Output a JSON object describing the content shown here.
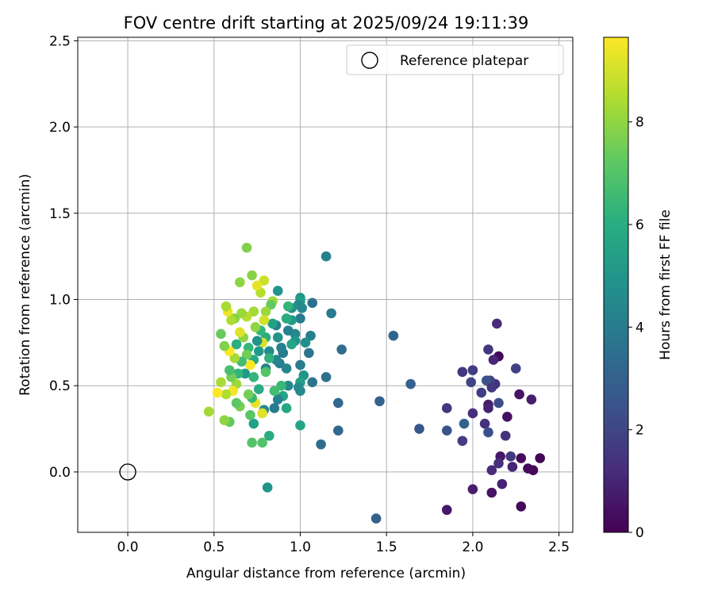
{
  "chart_data": {
    "type": "scatter",
    "title": "FOV centre drift starting at 2025/09/24 19:11:39",
    "xlabel": "Angular distance from reference (arcmin)",
    "ylabel": "Rotation from reference (arcmin)",
    "xlim": [
      -0.29,
      2.58
    ],
    "ylim": [
      -0.35,
      2.52
    ],
    "xticks": [
      0.0,
      0.5,
      1.0,
      1.5,
      2.0,
      2.5
    ],
    "yticks": [
      0.0,
      0.5,
      1.0,
      1.5,
      2.0,
      2.5
    ],
    "grid": true,
    "legend": {
      "placement": "top-right",
      "entries": [
        {
          "label": "Reference platepar",
          "marker": "open-circle"
        }
      ]
    },
    "reference_point": {
      "x": 0.0,
      "y": 0.0
    },
    "colorbar": {
      "label": "Hours from first FF file",
      "min": 0,
      "max": 9.65,
      "ticks": [
        0,
        2,
        4,
        6,
        8
      ],
      "colormap": "viridis"
    },
    "points": [
      {
        "x": 2.39,
        "y": 0.08,
        "t": 0.1
      },
      {
        "x": 2.35,
        "y": 0.01,
        "t": 0.2
      },
      {
        "x": 2.32,
        "y": 0.02,
        "t": 0.3
      },
      {
        "x": 2.28,
        "y": 0.08,
        "t": 0.3
      },
      {
        "x": 2.28,
        "y": -0.2,
        "t": 0.2
      },
      {
        "x": 2.23,
        "y": 0.03,
        "t": 1.0
      },
      {
        "x": 2.22,
        "y": 0.09,
        "t": 1.6
      },
      {
        "x": 2.17,
        "y": -0.07,
        "t": 0.9
      },
      {
        "x": 2.16,
        "y": 0.09,
        "t": 0.6
      },
      {
        "x": 2.15,
        "y": 0.05,
        "t": 1.3
      },
      {
        "x": 2.11,
        "y": -0.12,
        "t": 0.5
      },
      {
        "x": 2.11,
        "y": 0.01,
        "t": 1.2
      },
      {
        "x": 2.0,
        "y": -0.1,
        "t": 0.8
      },
      {
        "x": 1.85,
        "y": -0.22,
        "t": 0.6
      },
      {
        "x": 2.34,
        "y": 0.42,
        "t": 0.8
      },
      {
        "x": 2.27,
        "y": 0.45,
        "t": 0.5
      },
      {
        "x": 2.2,
        "y": 0.32,
        "t": 0.4
      },
      {
        "x": 2.19,
        "y": 0.21,
        "t": 1.4
      },
      {
        "x": 2.25,
        "y": 0.6,
        "t": 1.8
      },
      {
        "x": 2.14,
        "y": 0.86,
        "t": 1.2
      },
      {
        "x": 2.15,
        "y": 0.67,
        "t": 0.2
      },
      {
        "x": 2.12,
        "y": 0.65,
        "t": 1.0
      },
      {
        "x": 2.09,
        "y": 0.71,
        "t": 1.5
      },
      {
        "x": 2.15,
        "y": 0.4,
        "t": 2.3
      },
      {
        "x": 2.13,
        "y": 0.51,
        "t": 1.3
      },
      {
        "x": 2.1,
        "y": 0.53,
        "t": 1.9
      },
      {
        "x": 2.08,
        "y": 0.53,
        "t": 2.4
      },
      {
        "x": 2.11,
        "y": 0.49,
        "t": 1.6
      },
      {
        "x": 2.05,
        "y": 0.46,
        "t": 1.8
      },
      {
        "x": 2.09,
        "y": 0.39,
        "t": 0.7
      },
      {
        "x": 2.09,
        "y": 0.37,
        "t": 0.9
      },
      {
        "x": 2.07,
        "y": 0.28,
        "t": 1.4
      },
      {
        "x": 2.09,
        "y": 0.23,
        "t": 2.3
      },
      {
        "x": 1.99,
        "y": 0.52,
        "t": 2.0
      },
      {
        "x": 2.0,
        "y": 0.59,
        "t": 1.7
      },
      {
        "x": 1.94,
        "y": 0.58,
        "t": 1.5
      },
      {
        "x": 2.0,
        "y": 0.34,
        "t": 1.3
      },
      {
        "x": 1.95,
        "y": 0.28,
        "t": 3.0
      },
      {
        "x": 1.94,
        "y": 0.18,
        "t": 1.7
      },
      {
        "x": 1.85,
        "y": 0.37,
        "t": 1.5
      },
      {
        "x": 1.85,
        "y": 0.24,
        "t": 2.5
      },
      {
        "x": 1.69,
        "y": 0.25,
        "t": 2.6
      },
      {
        "x": 1.64,
        "y": 0.51,
        "t": 3.0
      },
      {
        "x": 1.54,
        "y": 0.79,
        "t": 3.1
      },
      {
        "x": 1.46,
        "y": 0.41,
        "t": 3.0
      },
      {
        "x": 1.44,
        "y": -0.27,
        "t": 3.0
      },
      {
        "x": 1.24,
        "y": 0.71,
        "t": 3.4
      },
      {
        "x": 1.22,
        "y": 0.4,
        "t": 3.2
      },
      {
        "x": 1.22,
        "y": 0.24,
        "t": 3.2
      },
      {
        "x": 1.18,
        "y": 0.92,
        "t": 4.0
      },
      {
        "x": 1.15,
        "y": 1.25,
        "t": 4.2
      },
      {
        "x": 1.15,
        "y": 0.55,
        "t": 3.6
      },
      {
        "x": 1.12,
        "y": 0.16,
        "t": 3.4
      },
      {
        "x": 1.07,
        "y": 0.98,
        "t": 3.5
      },
      {
        "x": 1.07,
        "y": 0.52,
        "t": 3.7
      },
      {
        "x": 1.06,
        "y": 0.79,
        "t": 4.2
      },
      {
        "x": 1.05,
        "y": 0.69,
        "t": 3.7
      },
      {
        "x": 1.03,
        "y": 0.75,
        "t": 4.8
      },
      {
        "x": 1.02,
        "y": 0.56,
        "t": 5.0
      },
      {
        "x": 1.01,
        "y": 0.95,
        "t": 4.5
      },
      {
        "x": 1.0,
        "y": 1.01,
        "t": 5.0
      },
      {
        "x": 1.0,
        "y": 0.99,
        "t": 5.5
      },
      {
        "x": 0.99,
        "y": 0.97,
        "t": 4.6
      },
      {
        "x": 1.0,
        "y": 0.89,
        "t": 4.0
      },
      {
        "x": 1.0,
        "y": 0.62,
        "t": 4.0
      },
      {
        "x": 1.0,
        "y": 0.52,
        "t": 5.5
      },
      {
        "x": 1.0,
        "y": 0.47,
        "t": 4.6
      },
      {
        "x": 0.99,
        "y": 0.49,
        "t": 4.6
      },
      {
        "x": 1.0,
        "y": 0.27,
        "t": 5.6
      },
      {
        "x": 0.97,
        "y": 0.8,
        "t": 4.5
      },
      {
        "x": 0.97,
        "y": 0.76,
        "t": 5.0
      },
      {
        "x": 0.95,
        "y": 0.95,
        "t": 4.8
      },
      {
        "x": 0.95,
        "y": 0.88,
        "t": 5.3
      },
      {
        "x": 0.95,
        "y": 0.74,
        "t": 5.6
      },
      {
        "x": 0.93,
        "y": 0.96,
        "t": 6.3
      },
      {
        "x": 0.93,
        "y": 0.82,
        "t": 4.3
      },
      {
        "x": 0.93,
        "y": 0.5,
        "t": 4.5
      },
      {
        "x": 0.92,
        "y": 0.6,
        "t": 4.4
      },
      {
        "x": 0.92,
        "y": 0.37,
        "t": 5.7
      },
      {
        "x": 0.92,
        "y": 0.89,
        "t": 5.9
      },
      {
        "x": 0.9,
        "y": 0.69,
        "t": 4.0
      },
      {
        "x": 0.9,
        "y": 0.44,
        "t": 5.6
      },
      {
        "x": 0.89,
        "y": 0.72,
        "t": 4.2
      },
      {
        "x": 0.89,
        "y": 0.5,
        "t": 6.5
      },
      {
        "x": 0.88,
        "y": 0.63,
        "t": 4.0
      },
      {
        "x": 0.87,
        "y": 1.05,
        "t": 5.0
      },
      {
        "x": 0.87,
        "y": 0.78,
        "t": 4.9
      },
      {
        "x": 0.87,
        "y": 0.42,
        "t": 4.3
      },
      {
        "x": 0.86,
        "y": 0.85,
        "t": 3.9
      },
      {
        "x": 0.86,
        "y": 0.65,
        "t": 4.4
      },
      {
        "x": 0.85,
        "y": 0.37,
        "t": 4.0
      },
      {
        "x": 0.85,
        "y": 0.47,
        "t": 6.7
      },
      {
        "x": 0.84,
        "y": 0.99,
        "t": 8.3
      },
      {
        "x": 0.84,
        "y": 0.86,
        "t": 5.5
      },
      {
        "x": 0.83,
        "y": 0.97,
        "t": 7.3
      },
      {
        "x": 0.82,
        "y": 0.7,
        "t": 4.6
      },
      {
        "x": 0.82,
        "y": 0.66,
        "t": 6.2
      },
      {
        "x": 0.82,
        "y": 0.21,
        "t": 5.9
      },
      {
        "x": 0.81,
        "y": -0.09,
        "t": 5.0
      },
      {
        "x": 0.8,
        "y": 0.93,
        "t": 8.2
      },
      {
        "x": 0.8,
        "y": 0.78,
        "t": 6.0
      },
      {
        "x": 0.8,
        "y": 0.6,
        "t": 4.3
      },
      {
        "x": 0.8,
        "y": 0.58,
        "t": 7.0
      },
      {
        "x": 0.79,
        "y": 0.88,
        "t": 9.0
      },
      {
        "x": 0.79,
        "y": 1.11,
        "t": 8.9
      },
      {
        "x": 0.79,
        "y": 0.36,
        "t": 4.6
      },
      {
        "x": 0.78,
        "y": 0.17,
        "t": 7.0
      },
      {
        "x": 0.78,
        "y": 0.34,
        "t": 9.2
      },
      {
        "x": 0.78,
        "y": 0.75,
        "t": 9.1
      },
      {
        "x": 0.77,
        "y": 0.82,
        "t": 6.3
      },
      {
        "x": 0.77,
        "y": 1.04,
        "t": 8.6
      },
      {
        "x": 0.76,
        "y": 0.7,
        "t": 5.3
      },
      {
        "x": 0.76,
        "y": 0.48,
        "t": 5.9
      },
      {
        "x": 0.75,
        "y": 1.08,
        "t": 9.3
      },
      {
        "x": 0.75,
        "y": 0.76,
        "t": 4.9
      },
      {
        "x": 0.74,
        "y": 0.84,
        "t": 8.0
      },
      {
        "x": 0.74,
        "y": 0.4,
        "t": 9.3
      },
      {
        "x": 0.73,
        "y": 0.93,
        "t": 8.3
      },
      {
        "x": 0.73,
        "y": 0.65,
        "t": 5.8
      },
      {
        "x": 0.73,
        "y": 0.55,
        "t": 6.3
      },
      {
        "x": 0.73,
        "y": 0.28,
        "t": 5.5
      },
      {
        "x": 0.72,
        "y": 1.14,
        "t": 7.9
      },
      {
        "x": 0.72,
        "y": 0.43,
        "t": 6.5
      },
      {
        "x": 0.72,
        "y": 0.17,
        "t": 7.0
      },
      {
        "x": 0.71,
        "y": 0.62,
        "t": 9.6
      },
      {
        "x": 0.71,
        "y": 0.33,
        "t": 7.1
      },
      {
        "x": 0.7,
        "y": 0.72,
        "t": 6.4
      },
      {
        "x": 0.7,
        "y": 0.45,
        "t": 7.6
      },
      {
        "x": 0.69,
        "y": 1.3,
        "t": 7.8
      },
      {
        "x": 0.69,
        "y": 0.68,
        "t": 7.6
      },
      {
        "x": 0.69,
        "y": 0.9,
        "t": 8.6
      },
      {
        "x": 0.68,
        "y": 0.57,
        "t": 5.2
      },
      {
        "x": 0.67,
        "y": 0.78,
        "t": 8.0
      },
      {
        "x": 0.66,
        "y": 0.92,
        "t": 8.2
      },
      {
        "x": 0.66,
        "y": 0.64,
        "t": 6.7
      },
      {
        "x": 0.65,
        "y": 1.1,
        "t": 8.0
      },
      {
        "x": 0.65,
        "y": 0.81,
        "t": 9.2
      },
      {
        "x": 0.65,
        "y": 0.38,
        "t": 7.7
      },
      {
        "x": 0.64,
        "y": 0.57,
        "t": 6.3
      },
      {
        "x": 0.63,
        "y": 0.74,
        "t": 6.0
      },
      {
        "x": 0.63,
        "y": 0.51,
        "t": 8.2
      },
      {
        "x": 0.63,
        "y": 0.4,
        "t": 7.2
      },
      {
        "x": 0.62,
        "y": 0.89,
        "t": 7.9
      },
      {
        "x": 0.62,
        "y": 0.66,
        "t": 8.3
      },
      {
        "x": 0.61,
        "y": 0.47,
        "t": 9.5
      },
      {
        "x": 0.6,
        "y": 0.55,
        "t": 7.6
      },
      {
        "x": 0.6,
        "y": 0.88,
        "t": 8.5
      },
      {
        "x": 0.59,
        "y": 0.7,
        "t": 9.6
      },
      {
        "x": 0.59,
        "y": 0.59,
        "t": 6.8
      },
      {
        "x": 0.59,
        "y": 0.29,
        "t": 7.3
      },
      {
        "x": 0.58,
        "y": 0.93,
        "t": 9.4
      },
      {
        "x": 0.57,
        "y": 0.96,
        "t": 8.4
      },
      {
        "x": 0.57,
        "y": 0.45,
        "t": 8.5
      },
      {
        "x": 0.56,
        "y": 0.73,
        "t": 7.8
      },
      {
        "x": 0.56,
        "y": 0.3,
        "t": 8.0
      },
      {
        "x": 0.54,
        "y": 0.8,
        "t": 7.4
      },
      {
        "x": 0.54,
        "y": 0.52,
        "t": 8.4
      },
      {
        "x": 0.52,
        "y": 0.46,
        "t": 9.6
      },
      {
        "x": 0.47,
        "y": 0.35,
        "t": 8.3
      }
    ]
  }
}
